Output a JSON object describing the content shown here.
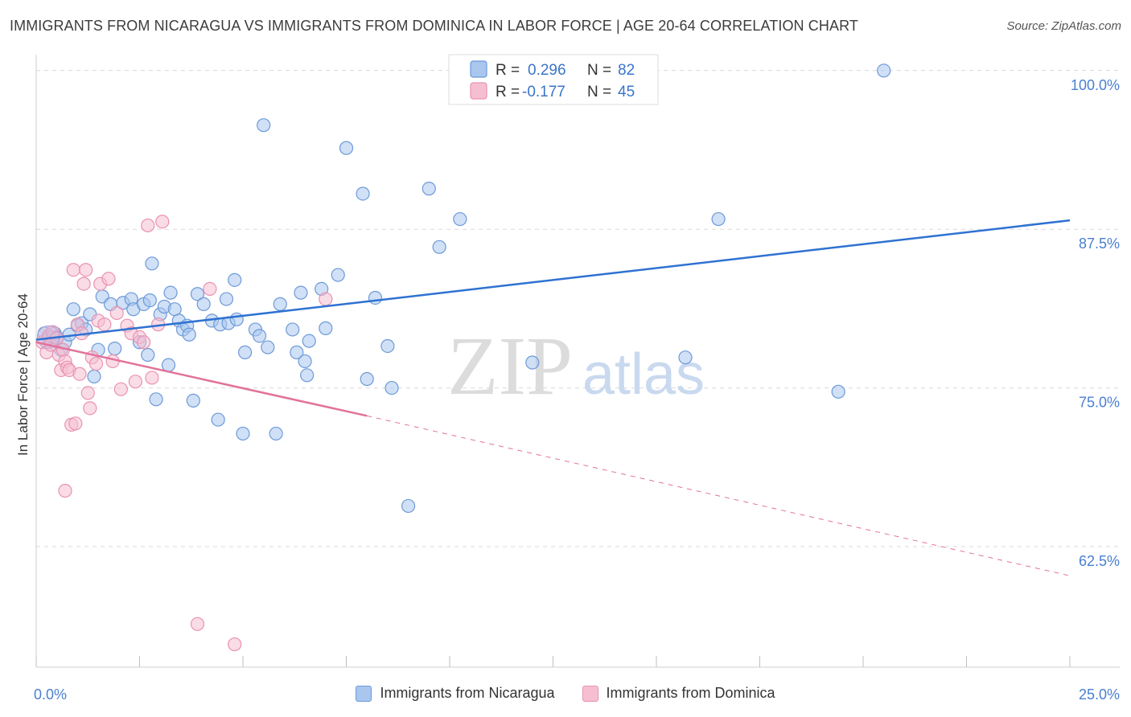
{
  "title": "IMMIGRANTS FROM NICARAGUA VS IMMIGRANTS FROM DOMINICA IN LABOR FORCE | AGE 20-64 CORRELATION CHART",
  "source": "Source: ZipAtlas.com",
  "watermark": {
    "part1": "ZIP",
    "part2": "atlas"
  },
  "colors": {
    "blue_fill": "#a9c6ee",
    "blue_stroke": "#6d9ad8",
    "blue_line": "#2e72d2",
    "pink_fill": "#f6bfd1",
    "pink_stroke": "#e992b2",
    "pink_line": "#e2729a",
    "grid": "#d9d9d9",
    "tick_text": "#4a7fd0"
  },
  "legend": {
    "rows": [
      {
        "r_label": "R =",
        "r_value": "0.296",
        "n_label": "N =",
        "n_value": "82"
      },
      {
        "r_label": "R =",
        "r_value": "-0.177",
        "n_label": "N =",
        "n_value": "45"
      }
    ]
  },
  "bottom_legend": [
    "Immigrants from Nicaragua",
    "Immigrants from Dominica"
  ],
  "chart_data": {
    "type": "scatter",
    "xlabel": "",
    "ylabel": "In Labor Force | Age 20-64",
    "xlim": [
      0,
      25
    ],
    "ylim": [
      53.0,
      101.0
    ],
    "x_ticks_labeled": [
      {
        "value": 0,
        "label": "0.0%"
      },
      {
        "value": 25,
        "label": "25.0%"
      }
    ],
    "x_tick_marks": [
      0,
      2.5,
      5,
      7.5,
      10,
      12.5,
      15,
      17.5,
      20,
      22.5,
      25
    ],
    "y_ticks": [
      {
        "value": 100.0,
        "label": "100.0%"
      },
      {
        "value": 87.5,
        "label": "87.5%"
      },
      {
        "value": 75.0,
        "label": "75.0%"
      },
      {
        "value": 62.5,
        "label": "62.5%"
      }
    ],
    "grid": true,
    "legend_position": "top-center",
    "series": [
      {
        "name": "Immigrants from Nicaragua",
        "color": "#a9c6ee",
        "points": [
          [
            0.2,
            79.3
          ],
          [
            0.3,
            78.9
          ],
          [
            0.4,
            79.0
          ],
          [
            0.45,
            79.3
          ],
          [
            0.5,
            79.0
          ],
          [
            0.6,
            78.0
          ],
          [
            0.7,
            78.6
          ],
          [
            0.8,
            79.2
          ],
          [
            0.9,
            81.2
          ],
          [
            1.0,
            79.9
          ],
          [
            1.1,
            80.1
          ],
          [
            1.2,
            79.6
          ],
          [
            1.3,
            80.8
          ],
          [
            1.4,
            75.9
          ],
          [
            1.5,
            78.0
          ],
          [
            1.6,
            82.2
          ],
          [
            1.8,
            81.6
          ],
          [
            1.9,
            78.1
          ],
          [
            2.1,
            81.7
          ],
          [
            2.3,
            82.0
          ],
          [
            2.35,
            81.2
          ],
          [
            2.5,
            78.6
          ],
          [
            2.6,
            81.6
          ],
          [
            2.7,
            77.6
          ],
          [
            2.75,
            81.9
          ],
          [
            2.8,
            84.8
          ],
          [
            2.9,
            74.1
          ],
          [
            3.0,
            80.8
          ],
          [
            3.1,
            81.4
          ],
          [
            3.2,
            76.8
          ],
          [
            3.25,
            82.5
          ],
          [
            3.35,
            81.2
          ],
          [
            3.45,
            80.3
          ],
          [
            3.55,
            79.6
          ],
          [
            3.65,
            79.9
          ],
          [
            3.7,
            79.2
          ],
          [
            3.8,
            74.0
          ],
          [
            3.9,
            82.4
          ],
          [
            4.05,
            81.6
          ],
          [
            4.25,
            80.3
          ],
          [
            4.4,
            72.5
          ],
          [
            4.45,
            80.0
          ],
          [
            4.6,
            82.0
          ],
          [
            4.65,
            80.1
          ],
          [
            4.8,
            83.5
          ],
          [
            4.85,
            80.4
          ],
          [
            5.0,
            71.4
          ],
          [
            5.05,
            77.8
          ],
          [
            5.3,
            79.6
          ],
          [
            5.4,
            79.1
          ],
          [
            5.5,
            95.7
          ],
          [
            5.6,
            78.2
          ],
          [
            5.8,
            71.4
          ],
          [
            5.9,
            81.6
          ],
          [
            6.2,
            79.6
          ],
          [
            6.3,
            77.8
          ],
          [
            6.4,
            82.5
          ],
          [
            6.5,
            77.1
          ],
          [
            6.55,
            76.0
          ],
          [
            6.6,
            78.7
          ],
          [
            6.9,
            82.8
          ],
          [
            7.0,
            79.7
          ],
          [
            7.3,
            83.9
          ],
          [
            7.5,
            93.9
          ],
          [
            7.9,
            90.3
          ],
          [
            8.0,
            75.7
          ],
          [
            8.2,
            82.1
          ],
          [
            8.5,
            78.3
          ],
          [
            8.6,
            75.0
          ],
          [
            9.0,
            65.7
          ],
          [
            9.5,
            90.7
          ],
          [
            9.75,
            86.1
          ],
          [
            10.25,
            88.3
          ],
          [
            10.6,
            100.0
          ],
          [
            12.0,
            77.0
          ],
          [
            15.7,
            77.4
          ],
          [
            16.5,
            88.3
          ],
          [
            19.4,
            74.7
          ],
          [
            20.5,
            100.0
          ]
        ]
      },
      {
        "name": "Immigrants from Dominica",
        "color": "#f6bfd1",
        "points": [
          [
            0.15,
            78.6
          ],
          [
            0.25,
            77.8
          ],
          [
            0.3,
            79.1
          ],
          [
            0.35,
            78.4
          ],
          [
            0.4,
            79.4
          ],
          [
            0.5,
            78.9
          ],
          [
            0.55,
            77.6
          ],
          [
            0.6,
            76.4
          ],
          [
            0.65,
            78.0
          ],
          [
            0.7,
            77.1
          ],
          [
            0.75,
            76.6
          ],
          [
            0.8,
            76.4
          ],
          [
            0.85,
            72.1
          ],
          [
            0.9,
            84.3
          ],
          [
            0.95,
            72.2
          ],
          [
            1.0,
            80.0
          ],
          [
            1.05,
            76.1
          ],
          [
            1.1,
            79.3
          ],
          [
            1.15,
            83.2
          ],
          [
            1.2,
            84.3
          ],
          [
            1.25,
            74.6
          ],
          [
            1.3,
            73.4
          ],
          [
            1.35,
            77.4
          ],
          [
            1.5,
            80.3
          ],
          [
            1.55,
            83.2
          ],
          [
            1.65,
            80.0
          ],
          [
            1.75,
            83.6
          ],
          [
            1.85,
            77.1
          ],
          [
            1.95,
            80.9
          ],
          [
            2.05,
            74.9
          ],
          [
            2.2,
            79.9
          ],
          [
            2.3,
            79.3
          ],
          [
            2.4,
            75.5
          ],
          [
            2.5,
            79.0
          ],
          [
            2.6,
            78.6
          ],
          [
            2.7,
            87.8
          ],
          [
            2.8,
            75.8
          ],
          [
            2.95,
            80.0
          ],
          [
            3.05,
            88.1
          ],
          [
            3.9,
            56.4
          ],
          [
            4.2,
            82.8
          ],
          [
            4.8,
            54.8
          ],
          [
            7.0,
            82.0
          ],
          [
            0.7,
            66.9
          ],
          [
            1.45,
            76.9
          ]
        ]
      }
    ],
    "trend_lines": [
      {
        "series": "Immigrants from Nicaragua",
        "from": [
          0.0,
          78.8
        ],
        "to": [
          25.0,
          88.2
        ],
        "style": "solid"
      },
      {
        "series": "Immigrants from Dominica",
        "from": [
          0.0,
          78.6
        ],
        "to": [
          8.0,
          72.8
        ],
        "style": "solid"
      },
      {
        "series": "Immigrants from Dominica",
        "from": [
          8.0,
          72.8
        ],
        "to": [
          25.0,
          60.2
        ],
        "style": "dashed"
      }
    ]
  }
}
